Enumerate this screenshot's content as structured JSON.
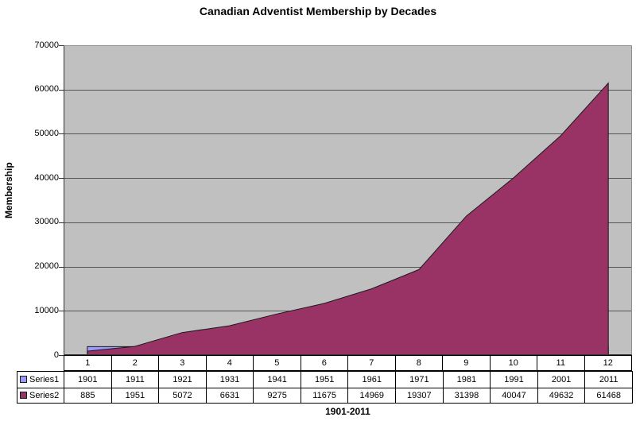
{
  "chart_data": {
    "type": "area",
    "title": "Canadian Adventist Membership by Decades",
    "ylabel": "Membership",
    "xlabel": "1901-2011",
    "ylim": [
      0,
      70000
    ],
    "yticks": [
      0,
      10000,
      20000,
      30000,
      40000,
      50000,
      60000,
      70000
    ],
    "categories": [
      "1",
      "2",
      "3",
      "4",
      "5",
      "6",
      "7",
      "8",
      "9",
      "10",
      "11",
      "12"
    ],
    "series": [
      {
        "name": "Series1",
        "color": "#9999FF",
        "values": [
          1901,
          1911,
          1921,
          1931,
          1941,
          1951,
          1961,
          1971,
          1981,
          1991,
          2001,
          2011
        ]
      },
      {
        "name": "Series2",
        "color": "#993366",
        "values": [
          885,
          1951,
          5072,
          6631,
          9275,
          11675,
          14969,
          19307,
          31398,
          40047,
          49632,
          61468
        ]
      }
    ],
    "grid": "horizontal",
    "legend_position": "left-of-data-table",
    "colors": {
      "background": "#FFFFFF",
      "plot_bg": "#C0C0C0",
      "gridline": "#555555",
      "plot_border": "#909090",
      "axis_line": "#333333",
      "series_border": "#1a1a1a",
      "table_border": "#000000",
      "text": "#000000"
    }
  }
}
